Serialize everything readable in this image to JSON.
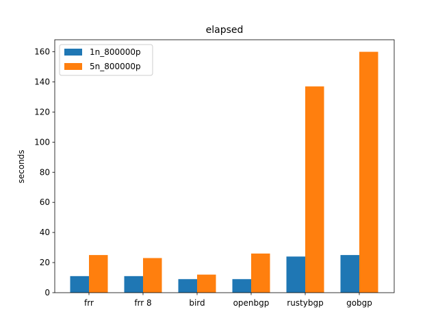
{
  "chart_data": {
    "type": "bar",
    "title": "elapsed",
    "xlabel": "",
    "ylabel": "seconds",
    "categories": [
      "frr",
      "frr 8",
      "bird",
      "openbgp",
      "rustybgp",
      "gobgp"
    ],
    "series": [
      {
        "name": "1n_800000p",
        "color": "#1f77b4",
        "values": [
          11,
          11,
          9,
          9,
          24,
          25
        ]
      },
      {
        "name": "5n_800000p",
        "color": "#ff7f0e",
        "values": [
          25,
          23,
          12,
          26,
          137,
          160
        ]
      }
    ],
    "ylim": [
      0,
      168
    ],
    "yticks": [
      0,
      20,
      40,
      60,
      80,
      100,
      120,
      140,
      160
    ],
    "legend_position": "top-left",
    "grid": false
  }
}
